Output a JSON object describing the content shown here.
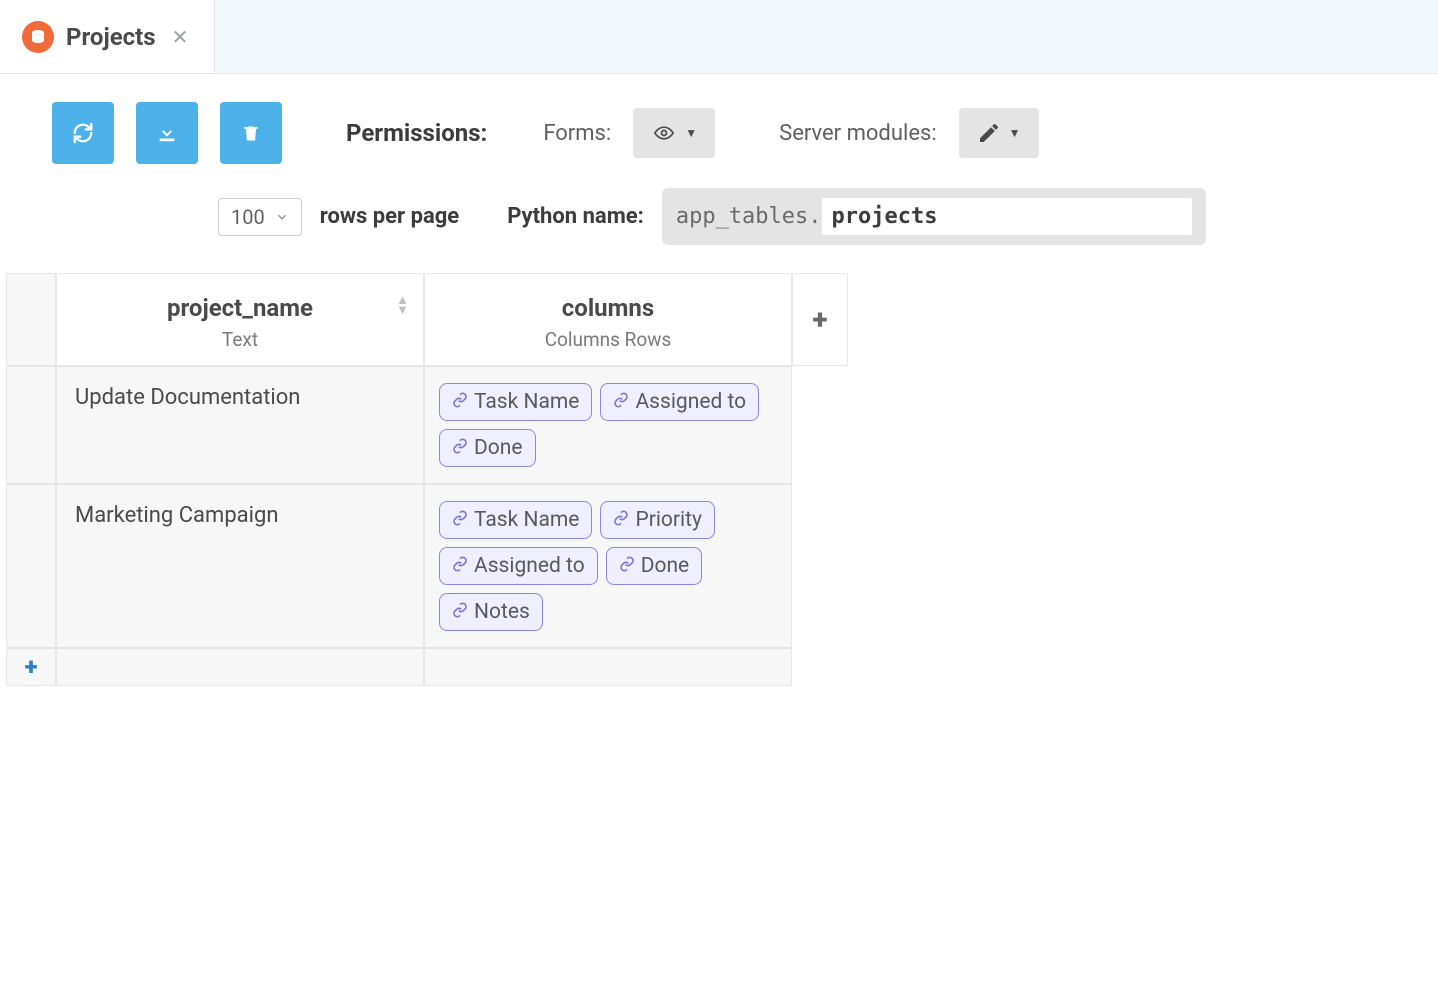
{
  "tab": {
    "title": "Projects"
  },
  "toolbar": {
    "permissions_label": "Permissions:",
    "forms_label": "Forms:",
    "server_label": "Server modules:",
    "rows_per_page": "100",
    "rows_per_page_label": "rows per page",
    "python_name_label": "Python name:",
    "python_prefix": "app_tables.",
    "python_name": "projects"
  },
  "columns": [
    {
      "name": "project_name",
      "type": "Text"
    },
    {
      "name": "columns",
      "type": "Columns Rows"
    }
  ],
  "rows": [
    {
      "project_name": "Update Documentation",
      "cols": [
        "Task Name",
        "Assigned to",
        "Done"
      ]
    },
    {
      "project_name": "Marketing Campaign",
      "cols": [
        "Task Name",
        "Priority",
        "Assigned to",
        "Done",
        "Notes"
      ]
    }
  ],
  "colors": {
    "accent_blue": "#4cb1e8",
    "tab_icon": "#ef6b3a",
    "tag_border": "#8a86e8",
    "tag_bg": "#efefff",
    "add_row": "#2f7fd1"
  }
}
